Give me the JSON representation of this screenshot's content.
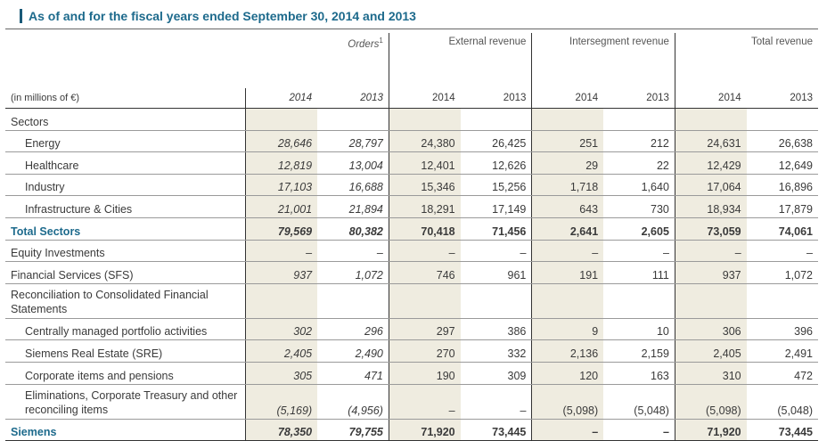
{
  "title": "As of and for the fiscal years ended September 30, 2014 and 2013",
  "groups": {
    "orders": "Orders",
    "orders_sup": "1",
    "external": "External revenue",
    "intersegment": "Intersegment revenue",
    "total": "Total revenue"
  },
  "unit_label": "(in millions of €)",
  "years": [
    "2014",
    "2013",
    "2014",
    "2013",
    "2014",
    "2013",
    "2014",
    "2013"
  ],
  "rows": [
    {
      "label": "Sectors",
      "values": [
        "",
        "",
        "",
        "",
        "",
        "",
        "",
        ""
      ]
    },
    {
      "label": "Energy",
      "values": [
        "28,646",
        "28,797",
        "24,380",
        "26,425",
        "251",
        "212",
        "24,631",
        "26,638"
      ]
    },
    {
      "label": "Healthcare",
      "values": [
        "12,819",
        "13,004",
        "12,401",
        "12,626",
        "29",
        "22",
        "12,429",
        "12,649"
      ]
    },
    {
      "label": "Industry",
      "values": [
        "17,103",
        "16,688",
        "15,346",
        "15,256",
        "1,718",
        "1,640",
        "17,064",
        "16,896"
      ]
    },
    {
      "label": "Infrastructure & Cities",
      "values": [
        "21,001",
        "21,894",
        "18,291",
        "17,149",
        "643",
        "730",
        "18,934",
        "17,879"
      ]
    },
    {
      "label": "Total Sectors",
      "values": [
        "79,569",
        "80,382",
        "70,418",
        "71,456",
        "2,641",
        "2,605",
        "73,059",
        "74,061"
      ]
    },
    {
      "label": "Equity Investments",
      "values": [
        "–",
        "–",
        "–",
        "–",
        "–",
        "–",
        "–",
        "–"
      ]
    },
    {
      "label": "Financial Services (SFS)",
      "values": [
        "937",
        "1,072",
        "746",
        "961",
        "191",
        "111",
        "937",
        "1,072"
      ]
    },
    {
      "label": "Reconciliation to Consolidated Financial Statements",
      "values": [
        "",
        "",
        "",
        "",
        "",
        "",
        "",
        ""
      ]
    },
    {
      "label": "Centrally managed portfolio activities",
      "values": [
        "302",
        "296",
        "297",
        "386",
        "9",
        "10",
        "306",
        "396"
      ]
    },
    {
      "label": "Siemens Real Estate (SRE)",
      "values": [
        "2,405",
        "2,490",
        "270",
        "332",
        "2,136",
        "2,159",
        "2,405",
        "2,491"
      ]
    },
    {
      "label": "Corporate items and pensions",
      "values": [
        "305",
        "471",
        "190",
        "309",
        "120",
        "163",
        "310",
        "472"
      ]
    },
    {
      "label": "Eliminations, Corporate Treasury and other reconciling items",
      "values": [
        "(5,169)",
        "(4,956)",
        "–",
        "–",
        "(5,098)",
        "(5,048)",
        "(5,098)",
        "(5,048)"
      ]
    },
    {
      "label": "Siemens",
      "values": [
        "78,350",
        "79,755",
        "71,920",
        "73,445",
        "–",
        "–",
        "71,920",
        "73,445"
      ]
    }
  ]
}
